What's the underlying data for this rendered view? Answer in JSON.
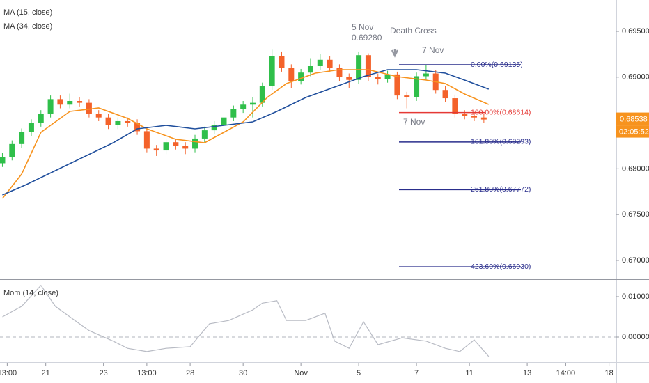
{
  "chart_data": [
    {
      "type": "candlestick",
      "x": [
        0,
        2,
        4,
        6,
        8,
        10,
        12,
        14,
        16,
        18,
        20,
        22,
        24,
        26,
        28,
        30,
        32,
        34,
        36,
        38,
        40,
        42,
        44,
        46,
        48,
        50,
        52,
        54,
        56,
        58,
        60,
        62,
        64,
        66,
        68,
        70,
        72,
        74,
        76,
        78,
        80,
        82,
        84,
        86,
        88,
        90,
        92,
        94,
        96,
        98,
        100
      ],
      "open": [
        0.6806,
        0.68132,
        0.6827,
        0.684,
        0.685,
        0.686,
        0.6876,
        0.687,
        0.6874,
        0.6872,
        0.686,
        0.6856,
        0.68474,
        0.6852,
        0.685,
        0.6841,
        0.6822,
        0.682,
        0.6829,
        0.6825,
        0.6822,
        0.6833,
        0.6842,
        0.6848,
        0.6856,
        0.6865,
        0.687,
        0.6872,
        0.689,
        0.6923,
        0.691,
        0.6896,
        0.6905,
        0.6912,
        0.6919,
        0.691,
        0.69,
        0.6897,
        0.6924,
        0.69,
        0.6898,
        0.6903,
        0.688,
        0.6878,
        0.6901,
        0.6904,
        0.6886,
        0.6877,
        0.686,
        0.6858,
        0.6856
      ],
      "high": [
        0.68172,
        0.6831,
        0.6844,
        0.6854,
        0.6864,
        0.688,
        0.688,
        0.6882,
        0.6878,
        0.6876,
        0.6864,
        0.686,
        0.6856,
        0.6856,
        0.6854,
        0.6845,
        0.6826,
        0.6833,
        0.6833,
        0.6829,
        0.6837,
        0.6846,
        0.6852,
        0.686,
        0.6869,
        0.6874,
        0.6878,
        0.6894,
        0.693,
        0.6928,
        0.6914,
        0.6909,
        0.692,
        0.6925,
        0.6923,
        0.6914,
        0.6904,
        0.6928,
        0.6926,
        0.6904,
        0.6907,
        0.6906,
        0.6884,
        0.6905,
        0.6913,
        0.6908,
        0.689,
        0.6881,
        0.6864,
        0.6862,
        0.686
      ],
      "low": [
        0.6802,
        0.68092,
        0.6823,
        0.6836,
        0.6846,
        0.6856,
        0.6866,
        0.6866,
        0.6868,
        0.6856,
        0.6852,
        0.68434,
        0.68434,
        0.6846,
        0.6837,
        0.6818,
        0.6814,
        0.6816,
        0.6821,
        0.6816,
        0.6818,
        0.6829,
        0.6838,
        0.6844,
        0.6852,
        0.6861,
        0.6856,
        0.6868,
        0.6886,
        0.6906,
        0.6888,
        0.6892,
        0.6901,
        0.6908,
        0.6906,
        0.6896,
        0.6888,
        0.6893,
        0.6896,
        0.6892,
        0.6894,
        0.6876,
        0.6866,
        0.6874,
        0.6897,
        0.6882,
        0.6873,
        0.6856,
        0.6854,
        0.6852,
        0.685
      ],
      "close": [
        0.68132,
        0.6827,
        0.684,
        0.685,
        0.686,
        0.6876,
        0.687,
        0.6874,
        0.6872,
        0.686,
        0.6856,
        0.68474,
        0.6852,
        0.685,
        0.6841,
        0.6822,
        0.682,
        0.6829,
        0.6825,
        0.6822,
        0.6833,
        0.6842,
        0.6848,
        0.6856,
        0.6865,
        0.687,
        0.6872,
        0.689,
        0.6923,
        0.691,
        0.6896,
        0.6905,
        0.6912,
        0.6919,
        0.691,
        0.69,
        0.6897,
        0.6924,
        0.69,
        0.6898,
        0.6903,
        0.688,
        0.6878,
        0.6901,
        0.6904,
        0.6886,
        0.6877,
        0.686,
        0.6858,
        0.6856,
        0.68538
      ],
      "up_color": "#2fbf4a",
      "down_color": "#f4622a",
      "xlim": [
        -0.5,
        127.5
      ],
      "ylim": [
        0.66802,
        0.69842
      ],
      "yticks": [
        {
          "value": 0.695,
          "label": "0.69500"
        },
        {
          "value": 0.69,
          "label": "0.69000"
        },
        {
          "value": 0.685,
          "label": "0.68500"
        },
        {
          "value": 0.68,
          "label": "0.68000"
        },
        {
          "value": 0.675,
          "label": "0.67500"
        },
        {
          "value": 0.67,
          "label": "0.67000"
        }
      ],
      "series": [
        {
          "name": "MA (15, close)",
          "color": "#f7931e",
          "x": [
            0,
            4,
            8,
            14,
            20,
            26,
            30,
            36,
            42,
            46,
            50,
            55,
            59,
            65,
            70,
            76,
            82,
            88,
            92,
            96,
            101
          ],
          "values": [
            0.67676,
            0.67942,
            0.68398,
            0.68626,
            0.68664,
            0.6855,
            0.68436,
            0.68322,
            0.68284,
            0.68398,
            0.68512,
            0.68778,
            0.6893,
            0.69044,
            0.69082,
            0.69082,
            0.69006,
            0.68968,
            0.6893,
            0.68816,
            0.68702
          ]
        },
        {
          "name": "MA (34, close)",
          "color": "#1f4e9c",
          "x": [
            0,
            5,
            11,
            17,
            23,
            28,
            34,
            40,
            46,
            52,
            57,
            63,
            69,
            75,
            80,
            86,
            92,
            96,
            101
          ],
          "values": [
            0.67714,
            0.67828,
            0.6798,
            0.68132,
            0.68284,
            0.68436,
            0.68474,
            0.68436,
            0.68474,
            0.68512,
            0.68626,
            0.68778,
            0.68892,
            0.69006,
            0.69082,
            0.69082,
            0.69044,
            0.68968,
            0.68869
          ]
        }
      ],
      "fib_levels": [
        {
          "value": 0.69135,
          "label": "0.00%(0.69135)",
          "color": "#2a2e8c"
        },
        {
          "value": 0.68614,
          "label": "100.00%(0.68614)",
          "color": "#e53935"
        },
        {
          "value": 0.68293,
          "label": "161.80%(0.68293)",
          "color": "#2a2e8c"
        },
        {
          "value": 0.67772,
          "label": "261.80%(0.67772)",
          "color": "#2a2e8c"
        },
        {
          "value": 0.6693,
          "label": "423.60%(0.66930)",
          "color": "#2a2e8c"
        }
      ],
      "annotations": [
        "5 Nov",
        "0.69280",
        "Death Cross",
        "7 Nov",
        "7 Nov"
      ],
      "last_price": 0.68538,
      "last_price_color": "#f7931e",
      "countdown": "02:05:52"
    },
    {
      "type": "line",
      "series": [
        {
          "name": "Mom (14, close)",
          "color": "#b8bbc4",
          "x": [
            0,
            4,
            8,
            11,
            14,
            18,
            23,
            26,
            30,
            34,
            39,
            43,
            47,
            52,
            54,
            57,
            59,
            63,
            67,
            69,
            72,
            75,
            78,
            83,
            88,
            92,
            95,
            98,
            101
          ],
          "values": [
            0.005,
            0.0076,
            0.0128,
            0.0076,
            0.005,
            0.0016,
            -0.001,
            -0.0028,
            -0.0036,
            -0.0028,
            -0.0024,
            0.0033,
            0.0041,
            0.0067,
            0.0084,
            0.009,
            0.0041,
            0.0041,
            0.0059,
            -0.001,
            -0.0028,
            0.0038,
            -0.0019,
            -0.0002,
            -0.001,
            -0.0028,
            -0.0036,
            -0.0007,
            -0.0048
          ]
        }
      ],
      "xlim": [
        -0.5,
        127.5
      ],
      "ylim": [
        -0.00621,
        0.01414
      ],
      "yticks": [
        {
          "value": 0.01,
          "label": "0.01000"
        },
        {
          "value": 0,
          "label": "0.00000"
        }
      ],
      "zero_line": true,
      "xticks": [
        {
          "value": 1,
          "label": "13:00"
        },
        {
          "value": 9,
          "label": "21"
        },
        {
          "value": 21,
          "label": "23"
        },
        {
          "value": 30,
          "label": "13:00"
        },
        {
          "value": 39,
          "label": "28"
        },
        {
          "value": 50,
          "label": "30"
        },
        {
          "value": 62,
          "label": "Nov"
        },
        {
          "value": 74,
          "label": "5"
        },
        {
          "value": 86,
          "label": "7"
        },
        {
          "value": 97,
          "label": "11"
        },
        {
          "value": 109,
          "label": "13"
        },
        {
          "value": 117,
          "label": "14:00"
        },
        {
          "value": 126,
          "label": "18"
        }
      ]
    }
  ]
}
